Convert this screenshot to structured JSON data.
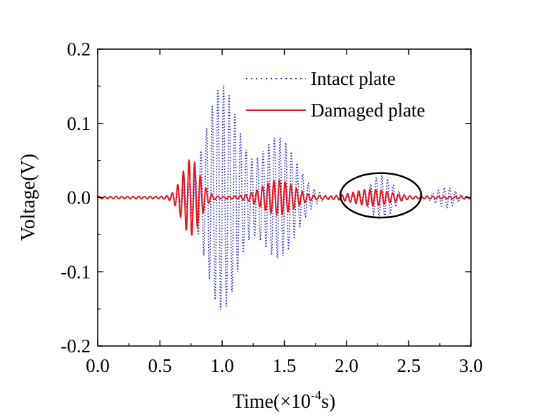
{
  "chart_data": {
    "type": "line",
    "title": "",
    "xlabel_main": "Time(×10",
    "xlabel_exp": "-4",
    "xlabel_end": "s)",
    "ylabel": "Voltage(V)",
    "xlim": [
      0.0,
      3.0
    ],
    "ylim": [
      -0.2,
      0.2
    ],
    "x_ticks": [
      "0.0",
      "0.5",
      "1.0",
      "1.5",
      "2.0",
      "2.5",
      "3.0"
    ],
    "y_ticks": [
      "-0.2",
      "-0.1",
      "0.0",
      "0.1",
      "0.2"
    ],
    "grid": false,
    "legend_position": "top-right",
    "series": [
      {
        "name": "Intact plate",
        "color": "#1f1fd0",
        "style": "dotted",
        "packets": [
          {
            "center": 1.0,
            "sigma": 0.18,
            "amplitude": 0.15,
            "frequency": 22
          },
          {
            "center": 1.45,
            "sigma": 0.2,
            "amplitude": 0.08,
            "frequency": 22
          },
          {
            "center": 2.28,
            "sigma": 0.12,
            "amplitude": 0.028,
            "frequency": 22
          },
          {
            "center": 2.8,
            "sigma": 0.1,
            "amplitude": 0.012,
            "frequency": 22
          }
        ]
      },
      {
        "name": "Damaged plate",
        "color": "#e8141c",
        "style": "solid",
        "packets": [
          {
            "center": 0.75,
            "sigma": 0.1,
            "amplitude": 0.05,
            "frequency": 22
          },
          {
            "center": 1.45,
            "sigma": 0.18,
            "amplitude": 0.022,
            "frequency": 22
          },
          {
            "center": 2.2,
            "sigma": 0.2,
            "amplitude": 0.01,
            "frequency": 22
          }
        ]
      }
    ],
    "annotation": {
      "shape": "ellipse",
      "x_range": [
        1.95,
        2.6
      ],
      "y_range": [
        -0.027,
        0.033
      ]
    }
  }
}
